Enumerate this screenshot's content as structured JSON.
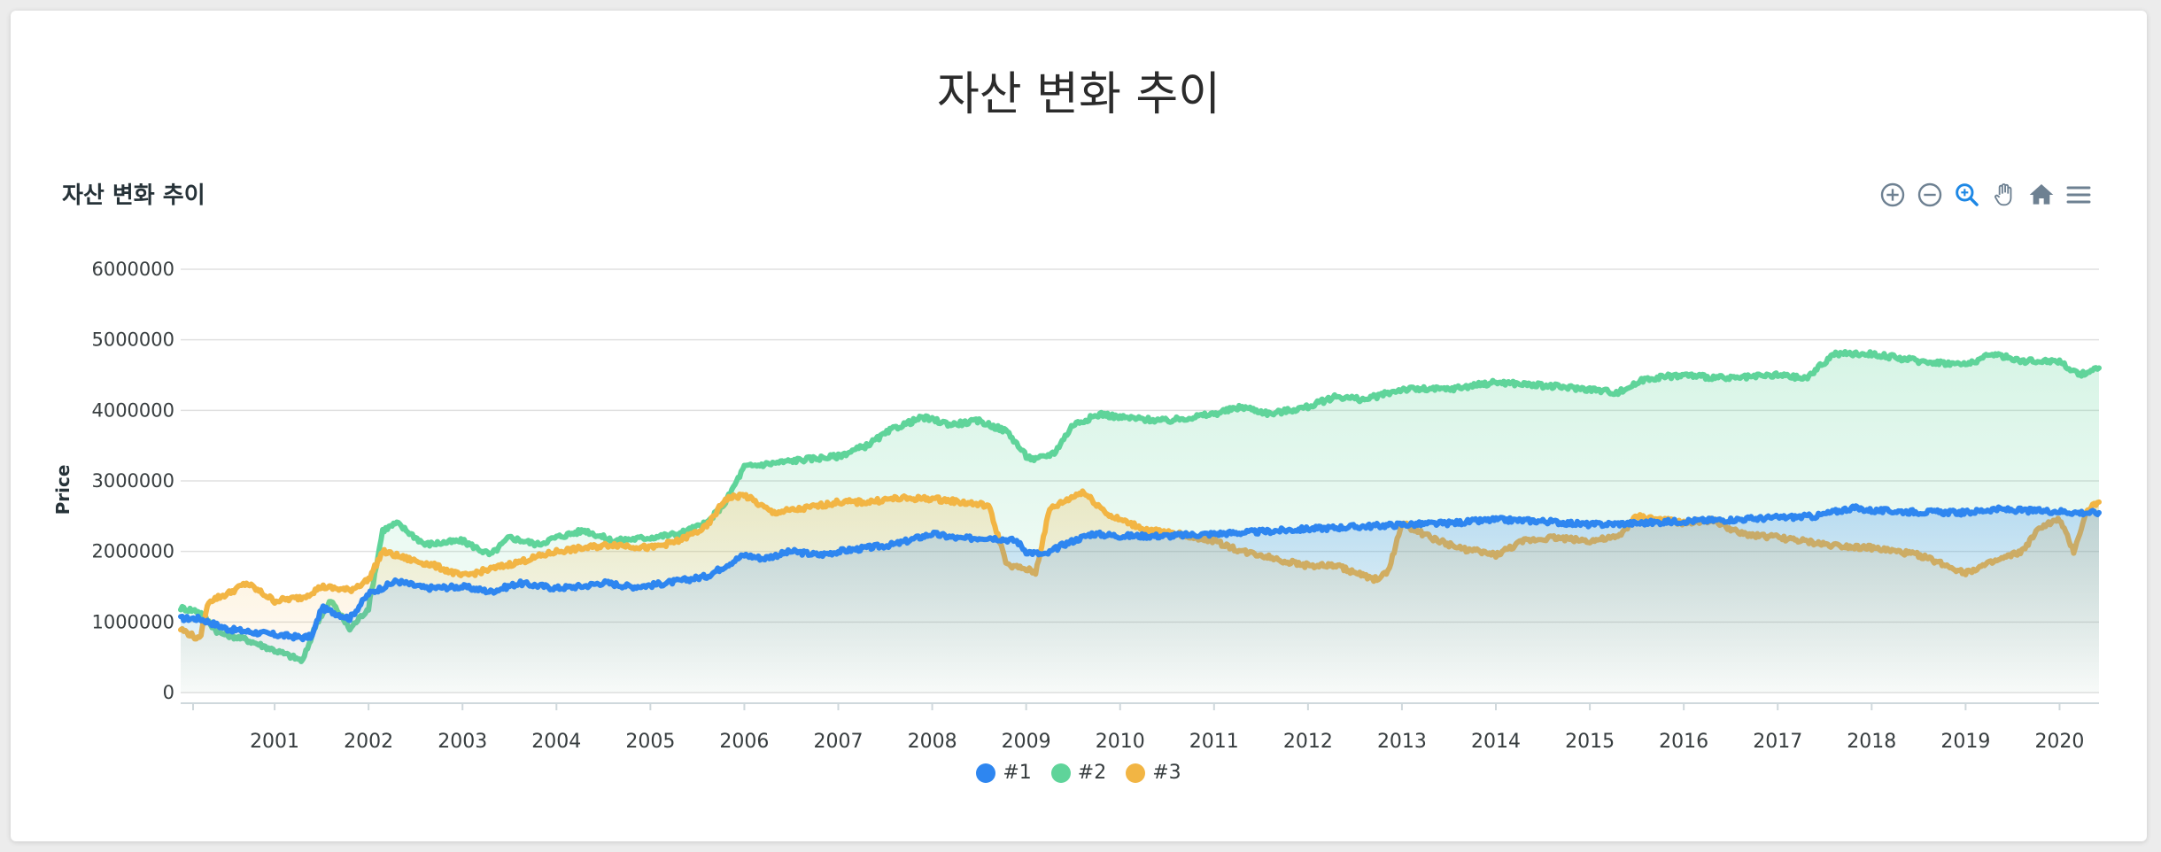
{
  "page": {
    "title": "자산 변화 추이"
  },
  "chart": {
    "title": "자산 변화 추이"
  },
  "toolbar": {
    "icons": [
      "zoom-in-icon",
      "zoom-out-icon",
      "selection-zoom-icon",
      "pan-icon",
      "home-icon",
      "menu-icon"
    ],
    "active_color": "#1e88e5",
    "icon_color": "#6e8192"
  },
  "chart_data": {
    "type": "area",
    "title": "자산 변화 추이",
    "xlabel": "",
    "ylabel": "Price",
    "xlim": [
      2000.0,
      2020.42
    ],
    "ylim": [
      0,
      6000000
    ],
    "y_ticks": [
      "0",
      "1000000",
      "2000000",
      "3000000",
      "4000000",
      "5000000",
      "6000000"
    ],
    "x_ticks": [
      "2001",
      "2002",
      "2003",
      "2004",
      "2005",
      "2006",
      "2007",
      "2008",
      "2009",
      "2010",
      "2011",
      "2012",
      "2013",
      "2014",
      "2015",
      "2016",
      "2017",
      "2018",
      "2019",
      "2020"
    ],
    "grid": true,
    "legend": "bottom-center",
    "series": [
      {
        "name": "#1",
        "color": "#2e86f0",
        "x": [
          2000.0,
          2000.2,
          2000.5,
          2000.8,
          2001.0,
          2001.3,
          2001.4,
          2001.5,
          2001.8,
          2002.0,
          2002.3,
          2002.6,
          2003.0,
          2003.3,
          2003.6,
          2004.0,
          2004.3,
          2004.5,
          2004.8,
          2005.0,
          2005.3,
          2005.6,
          2005.8,
          2006.0,
          2006.2,
          2006.5,
          2006.8,
          2007.0,
          2007.3,
          2007.6,
          2008.0,
          2008.3,
          2008.6,
          2008.9,
          2009.0,
          2009.2,
          2009.4,
          2009.7,
          2010.0,
          2010.5,
          2011.0,
          2011.5,
          2012.0,
          2012.5,
          2013.0,
          2013.5,
          2014.0,
          2014.5,
          2015.0,
          2015.5,
          2016.0,
          2016.5,
          2017.0,
          2017.4,
          2017.8,
          2018.0,
          2018.5,
          2019.0,
          2019.3,
          2019.6,
          2020.0,
          2020.2,
          2020.42
        ],
        "values": [
          1050000,
          1050000,
          900000,
          850000,
          820000,
          780000,
          800000,
          1200000,
          1050000,
          1400000,
          1580000,
          1480000,
          1500000,
          1430000,
          1550000,
          1480000,
          1510000,
          1560000,
          1500000,
          1520000,
          1580000,
          1650000,
          1800000,
          1950000,
          1900000,
          2000000,
          1950000,
          2000000,
          2050000,
          2100000,
          2250000,
          2180000,
          2200000,
          2150000,
          2000000,
          1950000,
          2100000,
          2250000,
          2220000,
          2220000,
          2250000,
          2280000,
          2320000,
          2350000,
          2380000,
          2400000,
          2450000,
          2430000,
          2380000,
          2400000,
          2430000,
          2450000,
          2480000,
          2500000,
          2620000,
          2580000,
          2560000,
          2550000,
          2600000,
          2580000,
          2570000,
          2550000,
          2550000
        ]
      },
      {
        "name": "#2",
        "color": "#5fd49a",
        "x": [
          2000.0,
          2000.2,
          2000.4,
          2000.7,
          2001.0,
          2001.3,
          2001.45,
          2001.6,
          2001.8,
          2002.0,
          2002.15,
          2002.3,
          2002.6,
          2003.0,
          2003.3,
          2003.5,
          2003.8,
          2004.0,
          2004.3,
          2004.6,
          2005.0,
          2005.3,
          2005.6,
          2005.8,
          2006.0,
          2006.3,
          2006.6,
          2007.0,
          2007.3,
          2007.6,
          2007.9,
          2008.2,
          2008.5,
          2008.8,
          2009.0,
          2009.1,
          2009.3,
          2009.5,
          2009.8,
          2010.0,
          2010.5,
          2011.0,
          2011.3,
          2011.6,
          2012.0,
          2012.3,
          2012.6,
          2013.0,
          2013.5,
          2014.0,
          2014.5,
          2015.0,
          2015.3,
          2015.6,
          2016.0,
          2016.5,
          2017.0,
          2017.3,
          2017.6,
          2018.0,
          2018.5,
          2019.0,
          2019.3,
          2019.6,
          2020.0,
          2020.2,
          2020.3,
          2020.42
        ],
        "values": [
          1200000,
          1150000,
          850000,
          750000,
          600000,
          450000,
          1000000,
          1300000,
          900000,
          1200000,
          2300000,
          2400000,
          2100000,
          2150000,
          1950000,
          2200000,
          2100000,
          2200000,
          2300000,
          2150000,
          2200000,
          2250000,
          2400000,
          2700000,
          3200000,
          3250000,
          3300000,
          3350000,
          3500000,
          3750000,
          3900000,
          3800000,
          3850000,
          3700000,
          3350000,
          3300000,
          3400000,
          3800000,
          3950000,
          3900000,
          3850000,
          3950000,
          4050000,
          3950000,
          4050000,
          4200000,
          4150000,
          4300000,
          4300000,
          4400000,
          4350000,
          4300000,
          4250000,
          4450000,
          4500000,
          4450000,
          4500000,
          4450000,
          4800000,
          4800000,
          4700000,
          4650000,
          4800000,
          4700000,
          4700000,
          4500000,
          4550000,
          4600000
        ]
      },
      {
        "name": "#3",
        "color": "#f2b544",
        "x": [
          2000.0,
          2000.2,
          2000.3,
          2000.5,
          2000.7,
          2001.0,
          2001.3,
          2001.5,
          2001.8,
          2002.0,
          2002.15,
          2002.4,
          2002.7,
          2003.0,
          2003.3,
          2003.6,
          2004.0,
          2004.3,
          2004.6,
          2005.0,
          2005.3,
          2005.6,
          2005.8,
          2006.0,
          2006.3,
          2006.6,
          2007.0,
          2007.3,
          2007.6,
          2008.0,
          2008.3,
          2008.6,
          2008.8,
          2009.0,
          2009.1,
          2009.25,
          2009.6,
          2009.9,
          2010.3,
          2010.6,
          2011.0,
          2011.3,
          2011.5,
          2011.8,
          2012.0,
          2012.3,
          2012.5,
          2012.7,
          2012.85,
          2013.0,
          2013.3,
          2013.6,
          2014.0,
          2014.3,
          2014.6,
          2015.0,
          2015.3,
          2015.5,
          2016.0,
          2016.3,
          2016.6,
          2017.0,
          2017.5,
          2018.0,
          2018.5,
          2018.8,
          2019.0,
          2019.3,
          2019.6,
          2019.8,
          2020.0,
          2020.15,
          2020.3,
          2020.42
        ],
        "values": [
          900000,
          750000,
          1300000,
          1400000,
          1550000,
          1300000,
          1350000,
          1500000,
          1450000,
          1600000,
          2000000,
          1900000,
          1800000,
          1650000,
          1750000,
          1850000,
          2000000,
          2050000,
          2100000,
          2050000,
          2150000,
          2350000,
          2750000,
          2800000,
          2550000,
          2600000,
          2700000,
          2700000,
          2750000,
          2750000,
          2700000,
          2650000,
          1800000,
          1750000,
          1700000,
          2600000,
          2850000,
          2500000,
          2300000,
          2250000,
          2150000,
          2000000,
          1950000,
          1850000,
          1800000,
          1800000,
          1700000,
          1600000,
          1700000,
          2400000,
          2200000,
          2050000,
          1950000,
          2150000,
          2200000,
          2150000,
          2200000,
          2500000,
          2400000,
          2450000,
          2250000,
          2200000,
          2100000,
          2050000,
          1950000,
          1800000,
          1700000,
          1850000,
          2000000,
          2350000,
          2450000,
          2000000,
          2600000,
          2700000
        ]
      }
    ]
  }
}
